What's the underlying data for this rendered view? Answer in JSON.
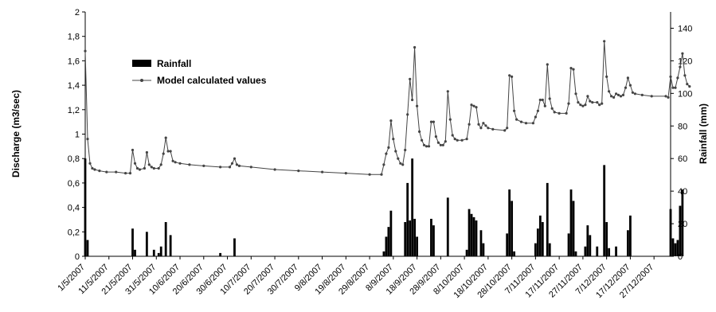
{
  "chart_data": {
    "type": "bar+line",
    "title": "",
    "xlabel": "",
    "ylabel_left": "Discharge (m3/sec)",
    "ylabel_right": "Rainfall (mm)",
    "ylim_left": [
      0,
      2
    ],
    "ylim_right": [
      0,
      150
    ],
    "left_ticks": [
      "0",
      "0,2",
      "0,4",
      "0,6",
      "0,8",
      "1",
      "1,2",
      "1,4",
      "1,6",
      "1,8",
      "2"
    ],
    "right_ticks": [
      "0",
      "20",
      "40",
      "60",
      "80",
      "100",
      "120",
      "140"
    ],
    "x_start": "2007-05-01",
    "x_end": "2008-01-03",
    "x_tick_labels": [
      "1/5/2007",
      "11/5/2007",
      "21/5/2007",
      "31/5/2007",
      "10/6/2007",
      "20/6/2007",
      "30/6/2007",
      "10/7/2007",
      "20/7/2007",
      "30/7/2007",
      "9/8/2007",
      "19/8/2007",
      "29/8/2007",
      "8/9/2007",
      "18/9/2007",
      "28/9/2007",
      "8/10/2007",
      "18/10/2007",
      "28/10/2007",
      "7/11/2007",
      "17/11/2007",
      "27/11/2007",
      "7/12/2007",
      "17/12/2007",
      "27/12/2007"
    ],
    "x_tick_dates": [
      "2007-05-01",
      "2007-05-11",
      "2007-05-21",
      "2007-05-31",
      "2007-06-10",
      "2007-06-20",
      "2007-06-30",
      "2007-07-10",
      "2007-07-20",
      "2007-07-30",
      "2007-08-09",
      "2007-08-19",
      "2007-08-29",
      "2007-09-08",
      "2007-09-18",
      "2007-09-28",
      "2007-10-08",
      "2007-10-18",
      "2007-10-28",
      "2007-11-07",
      "2007-11-17",
      "2007-11-27",
      "2007-12-07",
      "2007-12-17",
      "2007-12-27"
    ],
    "grid": false,
    "legend": {
      "placement": "top-left",
      "items": [
        {
          "label": "Rainfall",
          "kind": "bar"
        },
        {
          "label": "Model calculated values",
          "kind": "line"
        }
      ]
    },
    "series": [
      {
        "name": "Rainfall",
        "type": "bar",
        "axis": "right",
        "color": "#000000",
        "data": [
          [
            "2007-05-01",
            60
          ],
          [
            "2007-05-02",
            10
          ],
          [
            "2007-05-21",
            17
          ],
          [
            "2007-05-22",
            4
          ],
          [
            "2007-05-27",
            15
          ],
          [
            "2007-05-30",
            4
          ],
          [
            "2007-06-01",
            2
          ],
          [
            "2007-06-02",
            6
          ],
          [
            "2007-06-04",
            21
          ],
          [
            "2007-06-06",
            13
          ],
          [
            "2007-06-27",
            2
          ],
          [
            "2007-07-03",
            11
          ],
          [
            "2007-09-04",
            3
          ],
          [
            "2007-09-05",
            12
          ],
          [
            "2007-09-06",
            18
          ],
          [
            "2007-09-07",
            28
          ],
          [
            "2007-09-13",
            21
          ],
          [
            "2007-09-14",
            45
          ],
          [
            "2007-09-15",
            22
          ],
          [
            "2007-09-16",
            60
          ],
          [
            "2007-09-17",
            23
          ],
          [
            "2007-09-18",
            12
          ],
          [
            "2007-09-24",
            23
          ],
          [
            "2007-09-25",
            19
          ],
          [
            "2007-10-01",
            36
          ],
          [
            "2007-10-09",
            4
          ],
          [
            "2007-10-10",
            29
          ],
          [
            "2007-10-11",
            26
          ],
          [
            "2007-10-12",
            24
          ],
          [
            "2007-10-13",
            22
          ],
          [
            "2007-10-15",
            16
          ],
          [
            "2007-10-16",
            8
          ],
          [
            "2007-10-26",
            14
          ],
          [
            "2007-10-27",
            41
          ],
          [
            "2007-10-28",
            34
          ],
          [
            "2007-10-29",
            3
          ],
          [
            "2007-11-07",
            8
          ],
          [
            "2007-11-08",
            17
          ],
          [
            "2007-11-09",
            25
          ],
          [
            "2007-11-10",
            21
          ],
          [
            "2007-11-12",
            45
          ],
          [
            "2007-11-13",
            8
          ],
          [
            "2007-11-21",
            14
          ],
          [
            "2007-11-22",
            41
          ],
          [
            "2007-11-23",
            34
          ],
          [
            "2007-11-24",
            3
          ],
          [
            "2007-11-28",
            6
          ],
          [
            "2007-11-29",
            19
          ],
          [
            "2007-11-30",
            13
          ],
          [
            "2007-12-03",
            6
          ],
          [
            "2007-12-06",
            56
          ],
          [
            "2007-12-07",
            21
          ],
          [
            "2007-12-08",
            5
          ],
          [
            "2007-12-11",
            6
          ],
          [
            "2007-12-16",
            16
          ],
          [
            "2007-12-17",
            25
          ],
          [
            "2008-01-03",
            29
          ],
          [
            "2008-01-04",
            11
          ],
          [
            "2008-01-05",
            8
          ],
          [
            "2008-01-06",
            10
          ],
          [
            "2008-01-07",
            31
          ],
          [
            "2008-01-08",
            41
          ]
        ]
      },
      {
        "name": "Model calculated values",
        "type": "line",
        "axis": "left",
        "color": "#444444",
        "data": [
          [
            "2007-05-01",
            1.68
          ],
          [
            "2007-05-02",
            0.96
          ],
          [
            "2007-05-03",
            0.76
          ],
          [
            "2007-05-04",
            0.72
          ],
          [
            "2007-05-05",
            0.71
          ],
          [
            "2007-05-07",
            0.7
          ],
          [
            "2007-05-10",
            0.69
          ],
          [
            "2007-05-14",
            0.69
          ],
          [
            "2007-05-18",
            0.68
          ],
          [
            "2007-05-20",
            0.68
          ],
          [
            "2007-05-21",
            0.87
          ],
          [
            "2007-05-22",
            0.76
          ],
          [
            "2007-05-23",
            0.72
          ],
          [
            "2007-05-24",
            0.71
          ],
          [
            "2007-05-26",
            0.72
          ],
          [
            "2007-05-27",
            0.85
          ],
          [
            "2007-05-28",
            0.75
          ],
          [
            "2007-05-29",
            0.73
          ],
          [
            "2007-05-30",
            0.72
          ],
          [
            "2007-06-01",
            0.72
          ],
          [
            "2007-06-02",
            0.75
          ],
          [
            "2007-06-03",
            0.84
          ],
          [
            "2007-06-04",
            0.97
          ],
          [
            "2007-06-05",
            0.86
          ],
          [
            "2007-06-06",
            0.86
          ],
          [
            "2007-06-07",
            0.78
          ],
          [
            "2007-06-08",
            0.77
          ],
          [
            "2007-06-10",
            0.76
          ],
          [
            "2007-06-14",
            0.75
          ],
          [
            "2007-06-20",
            0.74
          ],
          [
            "2007-06-27",
            0.73
          ],
          [
            "2007-07-01",
            0.73
          ],
          [
            "2007-07-02",
            0.76
          ],
          [
            "2007-07-03",
            0.8
          ],
          [
            "2007-07-04",
            0.75
          ],
          [
            "2007-07-05",
            0.74
          ],
          [
            "2007-07-10",
            0.73
          ],
          [
            "2007-07-20",
            0.71
          ],
          [
            "2007-07-30",
            0.7
          ],
          [
            "2007-08-09",
            0.69
          ],
          [
            "2007-08-19",
            0.68
          ],
          [
            "2007-08-29",
            0.67
          ],
          [
            "2007-09-03",
            0.67
          ],
          [
            "2007-09-04",
            0.75
          ],
          [
            "2007-09-05",
            0.84
          ],
          [
            "2007-09-06",
            0.89
          ],
          [
            "2007-09-07",
            1.11
          ],
          [
            "2007-09-08",
            0.96
          ],
          [
            "2007-09-09",
            0.86
          ],
          [
            "2007-09-10",
            0.8
          ],
          [
            "2007-09-11",
            0.76
          ],
          [
            "2007-09-12",
            0.75
          ],
          [
            "2007-09-13",
            0.87
          ],
          [
            "2007-09-14",
            1.16
          ],
          [
            "2007-09-15",
            1.45
          ],
          [
            "2007-09-16",
            1.28
          ],
          [
            "2007-09-17",
            1.71
          ],
          [
            "2007-09-18",
            1.23
          ],
          [
            "2007-09-19",
            1.02
          ],
          [
            "2007-09-20",
            0.95
          ],
          [
            "2007-09-21",
            0.91
          ],
          [
            "2007-09-22",
            0.9
          ],
          [
            "2007-09-23",
            0.9
          ],
          [
            "2007-09-24",
            1.1
          ],
          [
            "2007-09-25",
            1.1
          ],
          [
            "2007-09-26",
            0.98
          ],
          [
            "2007-09-27",
            0.93
          ],
          [
            "2007-09-28",
            0.91
          ],
          [
            "2007-09-29",
            0.91
          ],
          [
            "2007-09-30",
            0.94
          ],
          [
            "2007-10-01",
            1.35
          ],
          [
            "2007-10-02",
            1.12
          ],
          [
            "2007-10-03",
            0.99
          ],
          [
            "2007-10-04",
            0.96
          ],
          [
            "2007-10-05",
            0.95
          ],
          [
            "2007-10-07",
            0.95
          ],
          [
            "2007-10-09",
            0.96
          ],
          [
            "2007-10-10",
            1.08
          ],
          [
            "2007-10-11",
            1.24
          ],
          [
            "2007-10-12",
            1.23
          ],
          [
            "2007-10-13",
            1.22
          ],
          [
            "2007-10-14",
            1.08
          ],
          [
            "2007-10-15",
            1.05
          ],
          [
            "2007-10-16",
            1.09
          ],
          [
            "2007-10-17",
            1.07
          ],
          [
            "2007-10-18",
            1.05
          ],
          [
            "2007-10-20",
            1.04
          ],
          [
            "2007-10-25",
            1.03
          ],
          [
            "2007-10-26",
            1.05
          ],
          [
            "2007-10-27",
            1.48
          ],
          [
            "2007-10-28",
            1.47
          ],
          [
            "2007-10-29",
            1.19
          ],
          [
            "2007-10-30",
            1.12
          ],
          [
            "2007-11-01",
            1.1
          ],
          [
            "2007-11-03",
            1.09
          ],
          [
            "2007-11-06",
            1.09
          ],
          [
            "2007-11-07",
            1.14
          ],
          [
            "2007-11-08",
            1.19
          ],
          [
            "2007-11-09",
            1.28
          ],
          [
            "2007-11-10",
            1.28
          ],
          [
            "2007-11-11",
            1.23
          ],
          [
            "2007-11-12",
            1.57
          ],
          [
            "2007-11-13",
            1.29
          ],
          [
            "2007-11-14",
            1.21
          ],
          [
            "2007-11-15",
            1.18
          ],
          [
            "2007-11-17",
            1.17
          ],
          [
            "2007-11-20",
            1.17
          ],
          [
            "2007-11-21",
            1.25
          ],
          [
            "2007-11-22",
            1.54
          ],
          [
            "2007-11-23",
            1.53
          ],
          [
            "2007-11-24",
            1.33
          ],
          [
            "2007-11-25",
            1.26
          ],
          [
            "2007-11-26",
            1.24
          ],
          [
            "2007-11-27",
            1.23
          ],
          [
            "2007-11-28",
            1.24
          ],
          [
            "2007-11-29",
            1.31
          ],
          [
            "2007-11-30",
            1.27
          ],
          [
            "2007-12-01",
            1.26
          ],
          [
            "2007-12-03",
            1.26
          ],
          [
            "2007-12-04",
            1.24
          ],
          [
            "2007-12-05",
            1.25
          ],
          [
            "2007-12-06",
            1.76
          ],
          [
            "2007-12-07",
            1.47
          ],
          [
            "2007-12-08",
            1.35
          ],
          [
            "2007-12-09",
            1.31
          ],
          [
            "2007-12-10",
            1.3
          ],
          [
            "2007-12-11",
            1.33
          ],
          [
            "2007-12-12",
            1.32
          ],
          [
            "2007-12-13",
            1.31
          ],
          [
            "2007-12-14",
            1.32
          ],
          [
            "2007-12-15",
            1.38
          ],
          [
            "2007-12-16",
            1.46
          ],
          [
            "2007-12-17",
            1.4
          ],
          [
            "2007-12-18",
            1.34
          ],
          [
            "2007-12-19",
            1.33
          ],
          [
            "2007-12-22",
            1.32
          ],
          [
            "2007-12-26",
            1.31
          ],
          [
            "2008-01-01",
            1.31
          ],
          [
            "2008-01-02",
            1.3
          ],
          [
            "2008-01-03",
            1.47
          ],
          [
            "2008-01-04",
            1.38
          ],
          [
            "2008-01-05",
            1.38
          ],
          [
            "2008-01-06",
            1.46
          ],
          [
            "2008-01-07",
            1.55
          ],
          [
            "2008-01-08",
            1.66
          ],
          [
            "2008-01-09",
            1.48
          ],
          [
            "2008-01-10",
            1.41
          ],
          [
            "2008-01-11",
            1.39
          ]
        ]
      }
    ]
  }
}
